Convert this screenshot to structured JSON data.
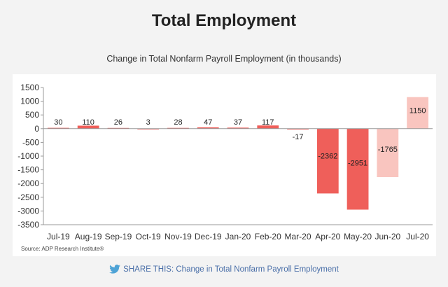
{
  "page": {
    "title": "Total Employment",
    "share_text": "SHARE THIS: Change in Total Nonfarm Payroll Employment",
    "share_icon": "twitter-bird-icon"
  },
  "colors": {
    "bar_primary": "#ef5f5a",
    "bar_light": "#f9c5bf",
    "axis": "#999999",
    "share": "#4a6fa8",
    "twitter": "#4ea3d6"
  },
  "chart_data": {
    "type": "bar",
    "title": "Change in Total Nonfarm Payroll Employment (in thousands)",
    "source": "Source: ADP Research Institute®",
    "xlabel": "",
    "ylabel": "",
    "ylim": [
      -3500,
      1500
    ],
    "yticks": [
      1500,
      1000,
      500,
      0,
      -500,
      -1000,
      -1500,
      -2000,
      -2500,
      -3000,
      -3500
    ],
    "grid": false,
    "categories": [
      "Jul-19",
      "Aug-19",
      "Sep-19",
      "Oct-19",
      "Nov-19",
      "Dec-19",
      "Jan-20",
      "Feb-20",
      "Mar-20",
      "Apr-20",
      "May-20",
      "Jun-20",
      "Jul-20"
    ],
    "values": [
      30,
      110,
      26,
      3,
      28,
      47,
      37,
      117,
      -17,
      -2362,
      -2951,
      -1765,
      1150
    ],
    "bar_shade": [
      "primary",
      "primary",
      "primary",
      "primary",
      "primary",
      "primary",
      "primary",
      "primary",
      "primary",
      "primary",
      "primary",
      "light",
      "light"
    ]
  }
}
